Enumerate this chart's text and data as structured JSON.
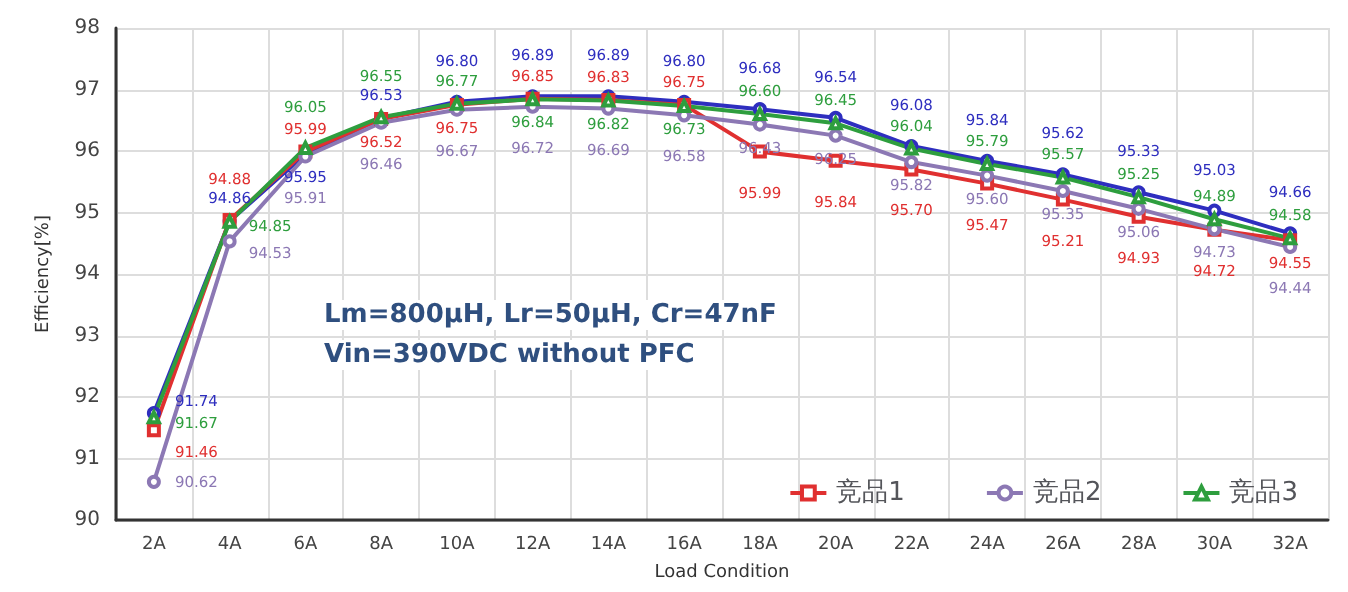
{
  "chart_data": {
    "type": "line",
    "xlabel": "Load Condition",
    "ylabel": "Efficiency[%]",
    "categories": [
      "2A",
      "4A",
      "6A",
      "8A",
      "10A",
      "12A",
      "14A",
      "16A",
      "18A",
      "20A",
      "22A",
      "24A",
      "26A",
      "28A",
      "30A",
      "32A"
    ],
    "series": [
      {
        "color": "#2e2ebf",
        "marker": "circle",
        "values": [
          91.74,
          94.86,
          95.95,
          96.53,
          96.8,
          96.89,
          96.89,
          96.8,
          96.68,
          96.54,
          96.08,
          95.84,
          95.62,
          95.33,
          95.03,
          94.66
        ],
        "value_labels": [
          "91.74",
          "94.86",
          "95.95",
          "96.53",
          "96.80",
          "96.89",
          "96.89",
          "96.80",
          "96.68",
          "96.54",
          "96.08",
          "95.84",
          "95.62",
          "95.33",
          "95.03",
          "94.66"
        ]
      },
      {
        "name": "竞品1",
        "color": "#e03030",
        "marker": "square",
        "values": [
          91.46,
          94.88,
          95.99,
          96.52,
          96.75,
          96.85,
          96.83,
          96.75,
          95.99,
          95.84,
          95.7,
          95.47,
          95.21,
          94.93,
          94.72,
          94.55
        ],
        "value_labels": [
          "91.46",
          "94.88",
          "95.99",
          "96.52",
          "96.75",
          "96.85",
          "96.83",
          "96.75",
          "95.99",
          "95.84",
          "95.70",
          "95.47",
          "95.21",
          "94.93",
          "94.72",
          "94.55"
        ]
      },
      {
        "name": "竞品2",
        "color": "#8c78b4",
        "marker": "circle",
        "values": [
          90.62,
          94.53,
          95.91,
          96.46,
          96.67,
          96.72,
          96.69,
          96.58,
          96.43,
          96.25,
          95.82,
          95.6,
          95.35,
          95.06,
          94.73,
          94.44
        ],
        "value_labels": [
          "90.62",
          "94.53",
          "95.91",
          "96.46",
          "96.67",
          "96.72",
          "96.69",
          "96.58",
          "96.43",
          "96.25",
          "95.82",
          "95.60",
          "95.35",
          "95.06",
          "94.73",
          "94.44"
        ]
      },
      {
        "name": "竞品3",
        "color": "#2e9e3e",
        "marker": "triangle",
        "values": [
          91.67,
          94.85,
          96.05,
          96.55,
          96.77,
          96.84,
          96.82,
          96.73,
          96.6,
          96.45,
          96.04,
          95.79,
          95.57,
          95.25,
          94.89,
          94.58
        ],
        "value_labels": [
          "91.67",
          "94.85",
          "96.05",
          "96.55",
          "96.77",
          "96.84",
          "96.82",
          "96.73",
          "96.60",
          "96.45",
          "96.04",
          "95.79",
          "95.57",
          "95.25",
          "94.89",
          "94.58"
        ]
      }
    ],
    "ylim": [
      90,
      98
    ],
    "yticks": [
      90,
      91,
      92,
      93,
      94,
      95,
      96,
      97,
      98
    ],
    "grid": true,
    "legend": "bottom right",
    "annotations": [
      "Lm=800μH, Lr=50μH, Cr=47nF",
      "Vin=390VDC without PFC"
    ]
  }
}
